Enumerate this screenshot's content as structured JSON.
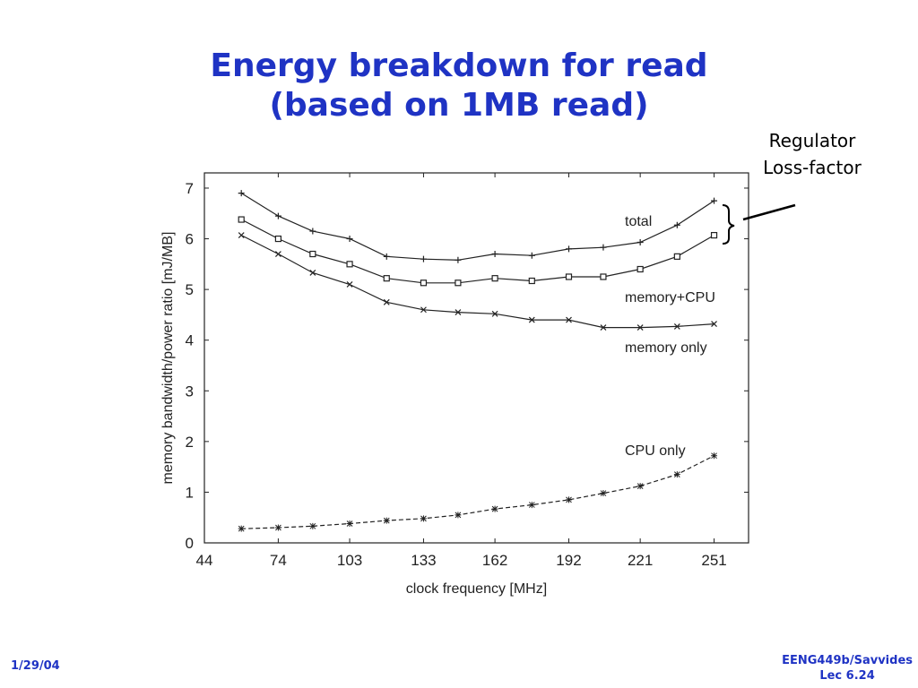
{
  "slide": {
    "title_line1": "Energy breakdown for read",
    "title_line2": "(based on 1MB read)",
    "annotation_line1": "Regulator",
    "annotation_line2": "Loss-factor",
    "footer_date": "1/29/04",
    "footer_course": "EENG449b/Savvides",
    "footer_lecture": "Lec 6.24",
    "title_color": "#1f33c4"
  },
  "chart_data": {
    "type": "line",
    "title": "",
    "xlabel": "clock frequency [MHz]",
    "ylabel": "memory bandwidth/power ratio [mJ/MB]",
    "xlim": [
      44,
      265
    ],
    "ylim": [
      0,
      7.3
    ],
    "xticks": [
      44,
      74,
      103,
      133,
      162,
      192,
      221,
      251
    ],
    "yticks": [
      0,
      1,
      2,
      3,
      4,
      5,
      6,
      7
    ],
    "grid": false,
    "x": [
      59,
      74,
      88,
      103,
      118,
      133,
      147,
      162,
      177,
      192,
      206,
      221,
      236,
      251
    ],
    "series": [
      {
        "name": "total",
        "marker": "plus",
        "dash": "solid",
        "values": [
          6.9,
          6.45,
          6.15,
          6.0,
          5.65,
          5.6,
          5.58,
          5.7,
          5.67,
          5.8,
          5.83,
          5.93,
          6.27,
          6.75
        ]
      },
      {
        "name": "memory+CPU",
        "marker": "square",
        "dash": "solid",
        "values": [
          6.38,
          6.0,
          5.7,
          5.5,
          5.22,
          5.13,
          5.13,
          5.22,
          5.17,
          5.25,
          5.25,
          5.4,
          5.65,
          6.07
        ]
      },
      {
        "name": "memory only",
        "marker": "x",
        "dash": "solid",
        "values": [
          6.07,
          5.7,
          5.33,
          5.1,
          4.75,
          4.6,
          4.55,
          4.52,
          4.4,
          4.4,
          4.25,
          4.25,
          4.27,
          4.32
        ]
      },
      {
        "name": "CPU only",
        "marker": "asterisk",
        "dash": "dashed",
        "values": [
          0.28,
          0.3,
          0.33,
          0.38,
          0.44,
          0.48,
          0.55,
          0.67,
          0.75,
          0.85,
          0.98,
          1.12,
          1.35,
          1.72
        ]
      }
    ]
  }
}
